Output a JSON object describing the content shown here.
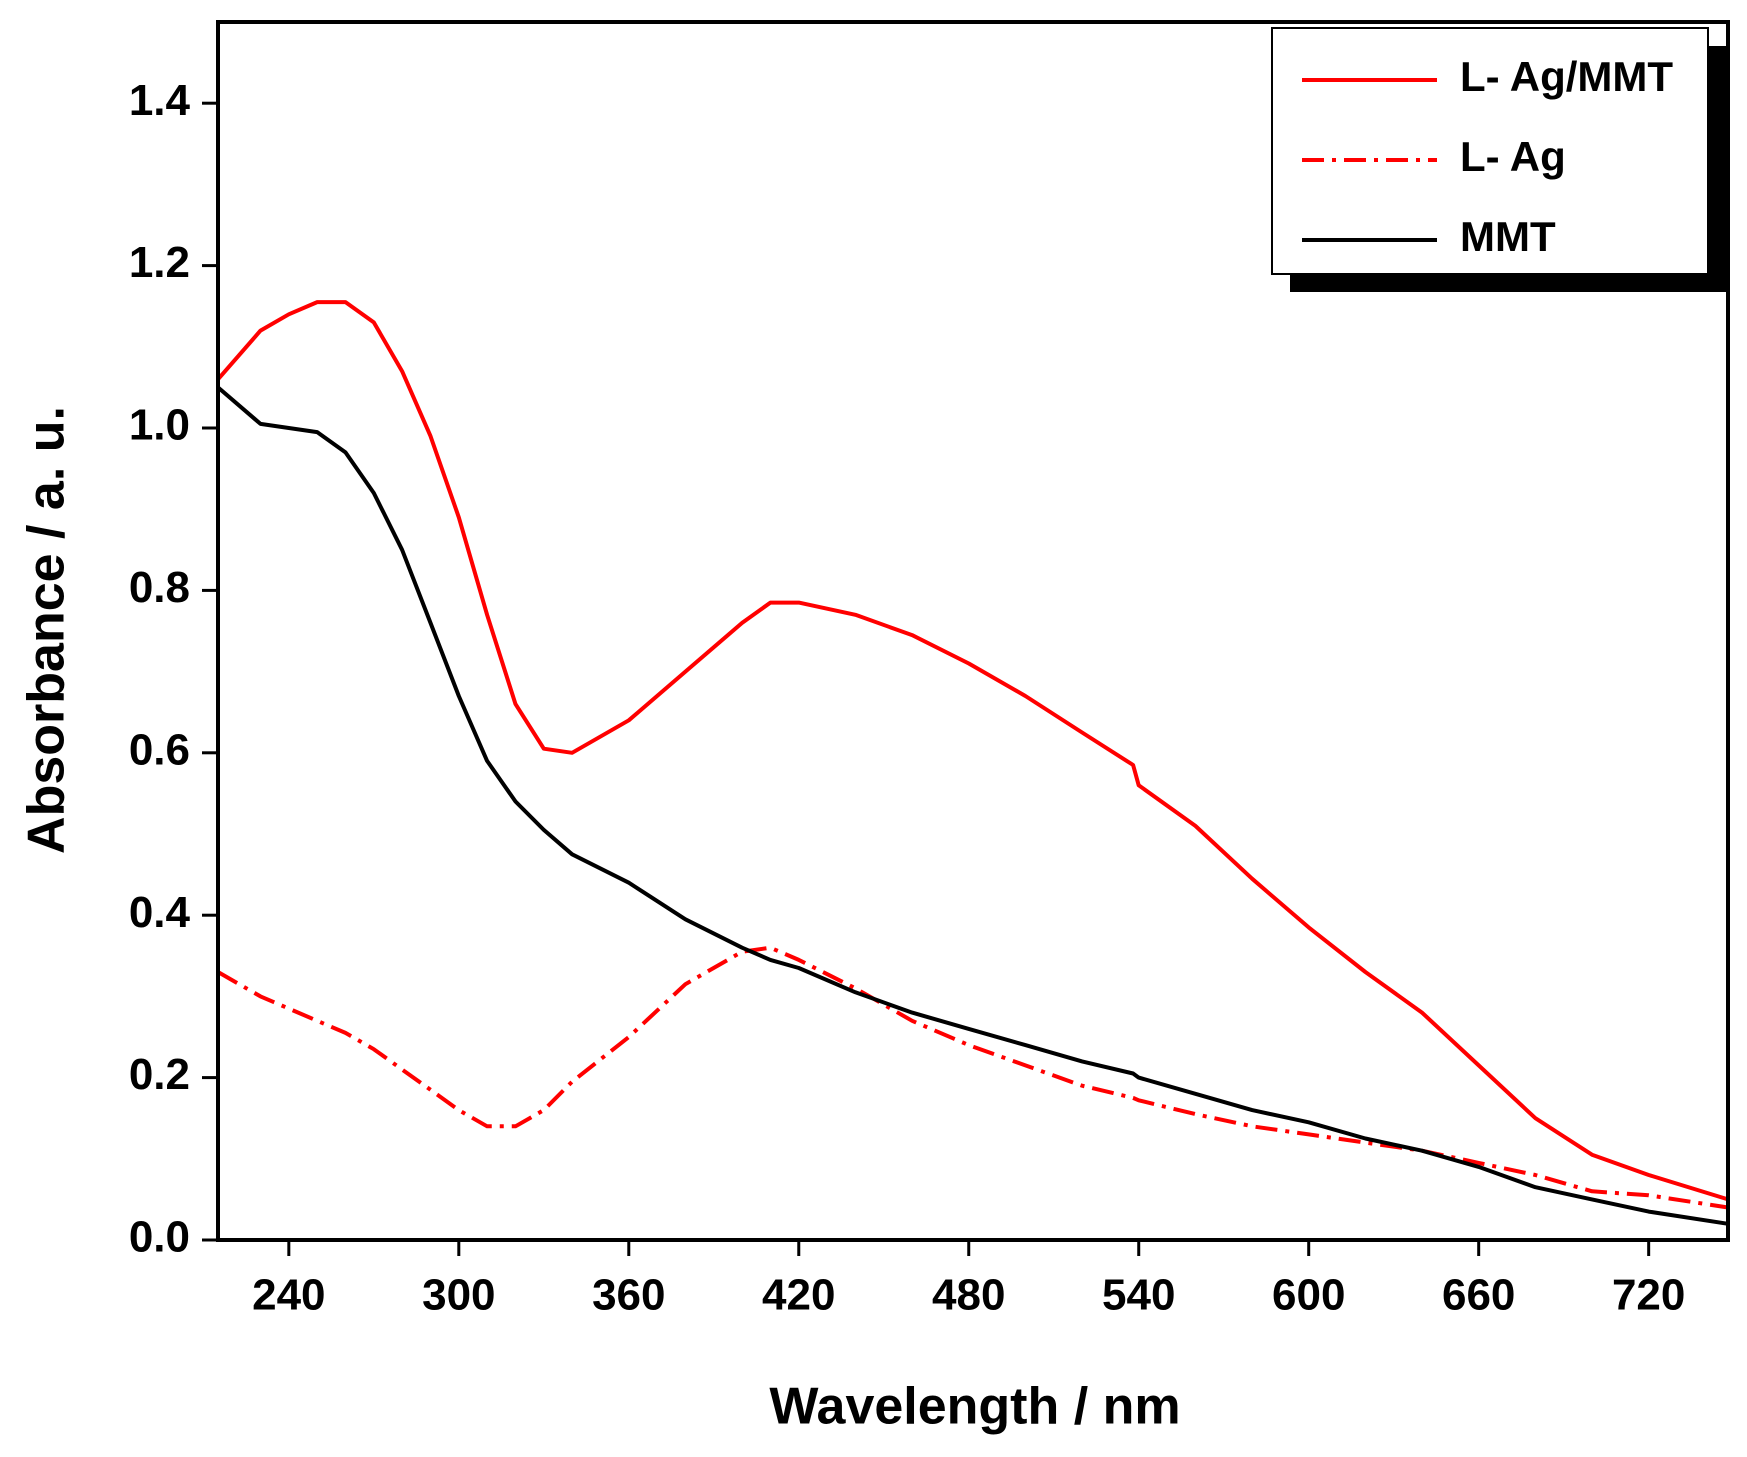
{
  "chart_data": {
    "type": "line",
    "xlabel": "Wavelength / nm",
    "ylabel": "Absorbance / a. u.",
    "x": [
      215,
      230,
      240,
      250,
      260,
      270,
      280,
      290,
      300,
      310,
      320,
      330,
      340,
      360,
      380,
      400,
      410,
      420,
      440,
      460,
      480,
      500,
      520,
      538,
      540,
      560,
      580,
      600,
      620,
      640,
      660,
      680,
      700,
      720,
      748
    ],
    "series": [
      {
        "name": "L- Ag/MMT",
        "color": "#ff0000",
        "dash": "solid",
        "values": [
          1.06,
          1.12,
          1.14,
          1.155,
          1.155,
          1.13,
          1.07,
          0.99,
          0.89,
          0.77,
          0.66,
          0.605,
          0.6,
          0.64,
          0.7,
          0.76,
          0.785,
          0.785,
          0.77,
          0.745,
          0.71,
          0.67,
          0.625,
          0.585,
          0.56,
          0.51,
          0.445,
          0.385,
          0.33,
          0.28,
          0.215,
          0.15,
          0.105,
          0.08,
          0.05
        ]
      },
      {
        "name": "L- Ag",
        "color": "#ff0000",
        "dash": "dashdot",
        "values": [
          0.33,
          0.3,
          0.285,
          0.27,
          0.255,
          0.235,
          0.21,
          0.185,
          0.16,
          0.14,
          0.14,
          0.16,
          0.195,
          0.25,
          0.315,
          0.355,
          0.36,
          0.345,
          0.31,
          0.27,
          0.24,
          0.215,
          0.19,
          0.175,
          0.172,
          0.155,
          0.14,
          0.13,
          0.12,
          0.11,
          0.095,
          0.08,
          0.06,
          0.055,
          0.04
        ]
      },
      {
        "name": "MMT",
        "color": "#000000",
        "dash": "solid",
        "values": [
          1.05,
          1.005,
          1.0,
          0.995,
          0.97,
          0.92,
          0.85,
          0.76,
          0.67,
          0.59,
          0.54,
          0.505,
          0.475,
          0.44,
          0.395,
          0.36,
          0.345,
          0.335,
          0.305,
          0.28,
          0.26,
          0.24,
          0.22,
          0.205,
          0.2,
          0.18,
          0.16,
          0.145,
          0.125,
          0.11,
          0.09,
          0.065,
          0.05,
          0.035,
          0.02
        ]
      }
    ],
    "xlim": [
      215,
      748
    ],
    "ylim": [
      0,
      1.5
    ],
    "xticks": [
      240,
      300,
      360,
      420,
      480,
      540,
      600,
      660,
      720
    ],
    "yticks": [
      {
        "value": 0,
        "label": "0.0"
      },
      0.2,
      0.4,
      0.6,
      0.8,
      {
        "value": 1,
        "label": "1.0"
      },
      1.2,
      1.4
    ],
    "legend": "upper right",
    "grid": false
  }
}
